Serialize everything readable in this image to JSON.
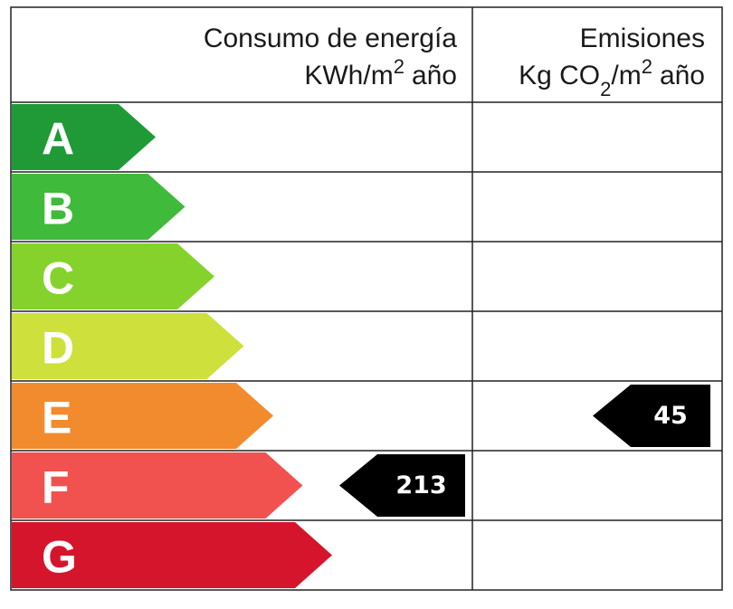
{
  "header": {
    "energy_title": "Consumo de energía",
    "energy_unit": {
      "text": "KWh/m",
      "sup": "2",
      "tail": "año"
    },
    "emissions_title": "Emisiones",
    "emissions_unit": {
      "text": "Kg CO",
      "sub": "2",
      "mid": "/m",
      "sup": "2",
      "tail": "año"
    }
  },
  "rows": [
    {
      "letter": "A",
      "color": "#1f9a36",
      "energy": null,
      "emissions": null
    },
    {
      "letter": "B",
      "color": "#3fba3a",
      "energy": null,
      "emissions": null
    },
    {
      "letter": "C",
      "color": "#86d22c",
      "energy": null,
      "emissions": null
    },
    {
      "letter": "D",
      "color": "#cde03c",
      "energy": null,
      "emissions": null
    },
    {
      "letter": "E",
      "color": "#f18b2e",
      "energy": null,
      "emissions": 45
    },
    {
      "letter": "F",
      "color": "#f2524f",
      "energy": 213,
      "emissions": null
    },
    {
      "letter": "G",
      "color": "#d5152c",
      "energy": null,
      "emissions": null
    }
  ]
}
